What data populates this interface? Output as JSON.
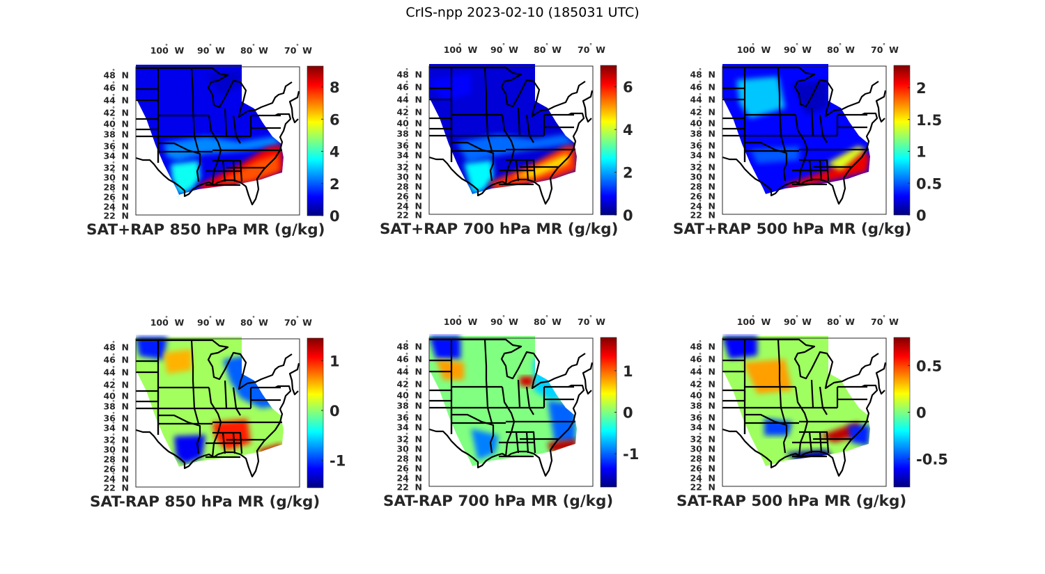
{
  "figure": {
    "suptitle": "CrIS-npp 2023-02-10 (185031 UTC)"
  },
  "chart_data": [
    {
      "type": "heatmap",
      "id": "p850sum",
      "title": "SAT+RAP 850 hPa MR (g/kg)",
      "xlabel": "",
      "ylabel": "",
      "lon_ticks": [
        "100° W",
        "90° W",
        "80° W",
        "70° W"
      ],
      "lat_ticks": [
        "48° N",
        "46° N",
        "44° N",
        "42° N",
        "40° N",
        "38° N",
        "36° N",
        "34° N",
        "32° N",
        "30° N",
        "28° N",
        "26° N",
        "24° N",
        "22° N"
      ],
      "colormap": "jet",
      "clim": [
        0,
        9.3
      ],
      "colorbar_ticks": [
        0,
        2,
        4,
        6,
        8
      ],
      "colorbar_tick_labels": [
        "0",
        "2",
        "4",
        "6",
        "8"
      ],
      "field_summary": {
        "north_and_central": 1.0,
        "ohio_tennessee_valley": 2.5,
        "texas_coast": 3.5,
        "gulf_and_southeast_coast": 8.5
      }
    },
    {
      "type": "heatmap",
      "id": "p700sum",
      "title": "SAT+RAP 700 hPa MR (g/kg)",
      "xlabel": "",
      "ylabel": "",
      "lon_ticks": [
        "100° W",
        "90° W",
        "80° W",
        "70° W"
      ],
      "lat_ticks": [
        "48° N",
        "46° N",
        "44° N",
        "42° N",
        "40° N",
        "38° N",
        "36° N",
        "34° N",
        "32° N",
        "30° N",
        "28° N",
        "26° N",
        "24° N",
        "22° N"
      ],
      "colormap": "jet",
      "clim": [
        0,
        7.0
      ],
      "colorbar_ticks": [
        0,
        2,
        4,
        6
      ],
      "colorbar_tick_labels": [
        "0",
        "2",
        "4",
        "6"
      ],
      "field_summary": {
        "north_and_central": 0.6,
        "ohio_tennessee_valley": 1.5,
        "texas_coast": 2.5,
        "gulf_and_southeast_coast": 5.8
      }
    },
    {
      "type": "heatmap",
      "id": "p500sum",
      "title": "SAT+RAP 500 hPa MR (g/kg)",
      "xlabel": "",
      "ylabel": "",
      "lon_ticks": [
        "100° W",
        "90° W",
        "80° W",
        "70° W"
      ],
      "lat_ticks": [
        "48° N",
        "46° N",
        "44° N",
        "42° N",
        "40° N",
        "38° N",
        "36° N",
        "34° N",
        "32° N",
        "30° N",
        "28° N",
        "26° N",
        "24° N",
        "22° N"
      ],
      "colormap": "jet",
      "clim": [
        0,
        2.35
      ],
      "colorbar_ticks": [
        0,
        0.5,
        1,
        1.5,
        2
      ],
      "colorbar_tick_labels": [
        "0",
        "0.5",
        "1",
        "1.5",
        "2"
      ],
      "field_summary": {
        "north_and_central": 0.3,
        "dakotas": 0.8,
        "ohio_tennessee_valley": 0.35,
        "gulf_and_southeast_coast": 2.1
      }
    },
    {
      "type": "heatmap",
      "id": "p850diff",
      "title": "SAT-RAP 850 hPa MR (g/kg)",
      "xlabel": "",
      "ylabel": "",
      "lon_ticks": [
        "100° W",
        "90° W",
        "80° W",
        "70° W"
      ],
      "lat_ticks": [
        "48° N",
        "46° N",
        "44° N",
        "42° N",
        "40° N",
        "38° N",
        "36° N",
        "34° N",
        "32° N",
        "30° N",
        "28° N",
        "26° N",
        "24° N",
        "22° N"
      ],
      "colormap": "jet",
      "clim": [
        -1.55,
        1.45
      ],
      "colorbar_ticks": [
        -1,
        0,
        1
      ],
      "colorbar_tick_labels": [
        "-1",
        "0",
        "1"
      ],
      "field_summary": {
        "plains_and_midwest": 0.1,
        "great_lakes_and_northeast": -1.0,
        "southeast_interior": 1.0,
        "gulf_coast": -1.2
      }
    },
    {
      "type": "heatmap",
      "id": "p700diff",
      "title": "SAT-RAP 700 hPa MR (g/kg)",
      "xlabel": "",
      "ylabel": "",
      "lon_ticks": [
        "100° W",
        "90° W",
        "80° W",
        "70° W"
      ],
      "lat_ticks": [
        "48° N",
        "46° N",
        "44° N",
        "42° N",
        "40° N",
        "38° N",
        "36° N",
        "34° N",
        "32° N",
        "30° N",
        "28° N",
        "26° N",
        "24° N",
        "22° N"
      ],
      "colormap": "jet",
      "clim": [
        -1.8,
        1.8
      ],
      "colorbar_ticks": [
        -1,
        0,
        1
      ],
      "colorbar_tick_labels": [
        "-1",
        "0",
        "1"
      ],
      "field_summary": {
        "plains_and_midwest": 0.0,
        "northern_plains": 0.8,
        "great_lakes_and_northeast": -0.8,
        "southeast_coast_offshore": 1.6
      }
    },
    {
      "type": "heatmap",
      "id": "p500diff",
      "title": "SAT-RAP 500 hPa MR (g/kg)",
      "xlabel": "",
      "ylabel": "",
      "lon_ticks": [
        "100° W",
        "90° W",
        "80° W",
        "70° W"
      ],
      "lat_ticks": [
        "48° N",
        "46° N",
        "44° N",
        "42° N",
        "40° N",
        "38° N",
        "36° N",
        "34° N",
        "32° N",
        "30° N",
        "28° N",
        "26° N",
        "24° N",
        "22° N"
      ],
      "colormap": "jet",
      "clim": [
        -0.8,
        0.8
      ],
      "colorbar_ticks": [
        -0.5,
        0,
        0.5
      ],
      "colorbar_tick_labels": [
        "-0.5",
        "0",
        "0.5"
      ],
      "field_summary": {
        "plains_and_midwest": 0.05,
        "nebraska_dakotas": 0.3,
        "carolinas": 0.7,
        "gulf_coast": -0.75
      }
    }
  ]
}
